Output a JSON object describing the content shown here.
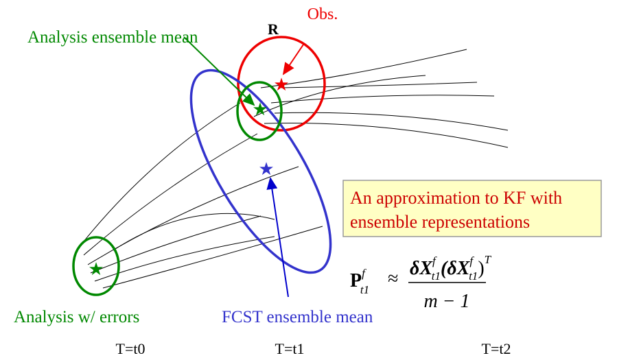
{
  "labels": {
    "obs": "Obs.",
    "r": "R",
    "analysis_mean": "Analysis ensemble mean",
    "analysis_errors": "Analysis w/ errors",
    "fcst_mean": "FCST ensemble mean"
  },
  "note": {
    "lines": [
      "An approximation to KF with",
      "ensemble representations"
    ]
  },
  "formula": {
    "lhs": "P",
    "lhs_sup": "f",
    "lhs_sub": "t1",
    "approx": "≈",
    "num1": "δX",
    "num1_sup": "f",
    "num1_sub": "t1",
    "num2": "(δX",
    "num2_sup": "f",
    "num2_sub": "t1",
    "num2_close": ")",
    "num2_sup2": "T",
    "den": "m − 1"
  },
  "times": [
    "T=t0",
    "T=t1",
    "T=t2"
  ]
}
